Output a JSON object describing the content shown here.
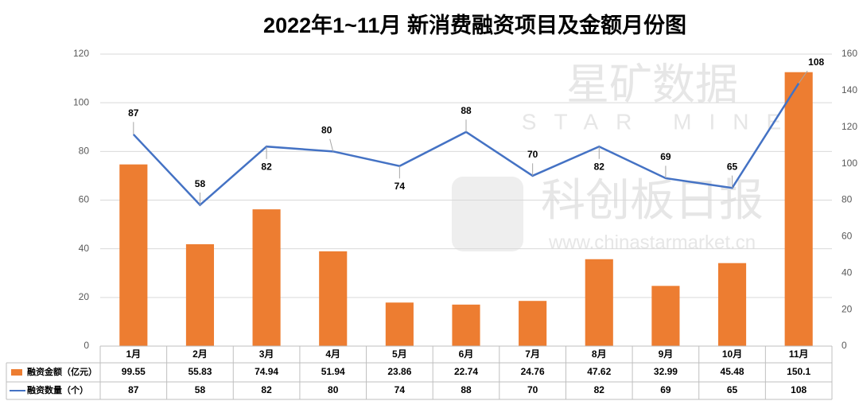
{
  "chart_data": {
    "type": "bar-line",
    "title": "2022年1~11月 新消费融资项目及金额月份图",
    "categories": [
      "1月",
      "2月",
      "3月",
      "4月",
      "5月",
      "6月",
      "7月",
      "8月",
      "9月",
      "10月",
      "11月"
    ],
    "series": [
      {
        "name": "融资金额（亿元）",
        "type": "bar",
        "axis": "y2",
        "color": "#ED7D31",
        "values": [
          99.55,
          55.83,
          74.94,
          51.94,
          23.86,
          22.74,
          24.76,
          47.62,
          32.99,
          45.48,
          150.1
        ]
      },
      {
        "name": "融资数量（个）",
        "type": "line",
        "axis": "y",
        "color": "#4472C4",
        "values": [
          87,
          58,
          82,
          80,
          74,
          88,
          70,
          82,
          69,
          65,
          108
        ]
      }
    ],
    "ylim": [
      0,
      120
    ],
    "yticks": [
      0,
      20,
      40,
      60,
      80,
      100,
      120
    ],
    "y2lim": [
      0,
      160
    ],
    "y2ticks": [
      0,
      20,
      40,
      60,
      80,
      100,
      120,
      140,
      160
    ],
    "grid": true
  },
  "watermarks": [
    "星矿数据",
    "STAR MINE",
    "科创板日报",
    "www.chinastarmarket.cn"
  ]
}
